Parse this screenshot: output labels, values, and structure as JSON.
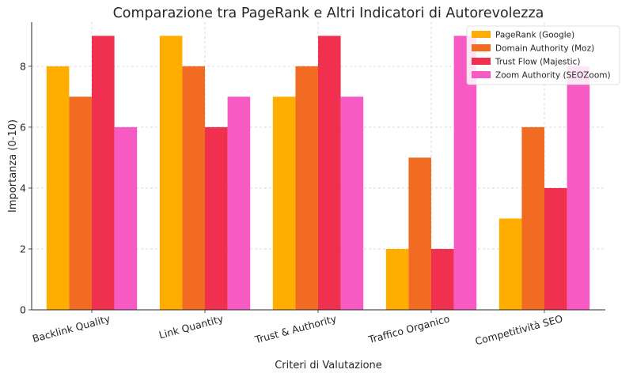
{
  "chart_data": {
    "type": "bar",
    "title": "Comparazione tra PageRank e Altri Indicatori di Autorevolezza",
    "xlabel": "Criteri di Valutazione",
    "ylabel": "Importanza (0-10)",
    "categories": [
      "Backlink Quality",
      "Link Quantity",
      "Trust & Authority",
      "Traffico Organico",
      "Competitività SEO"
    ],
    "series": [
      {
        "name": "PageRank (Google)",
        "color": "#FFAE00",
        "values": [
          8,
          9,
          7,
          2,
          3
        ]
      },
      {
        "name": "Domain Authority (Moz)",
        "color": "#F26B22",
        "values": [
          7,
          8,
          8,
          5,
          6
        ]
      },
      {
        "name": "Trust Flow (Majestic)",
        "color": "#F0304F",
        "values": [
          9,
          6,
          9,
          2,
          4
        ]
      },
      {
        "name": "Zoom Authority (SEOZoom)",
        "color": "#F75BC3",
        "values": [
          6,
          7,
          7,
          9,
          8
        ]
      }
    ],
    "ylim": [
      0,
      9.45
    ],
    "yticks": [
      0,
      2,
      4,
      6,
      8
    ],
    "grid": true,
    "legend": "top-right"
  }
}
